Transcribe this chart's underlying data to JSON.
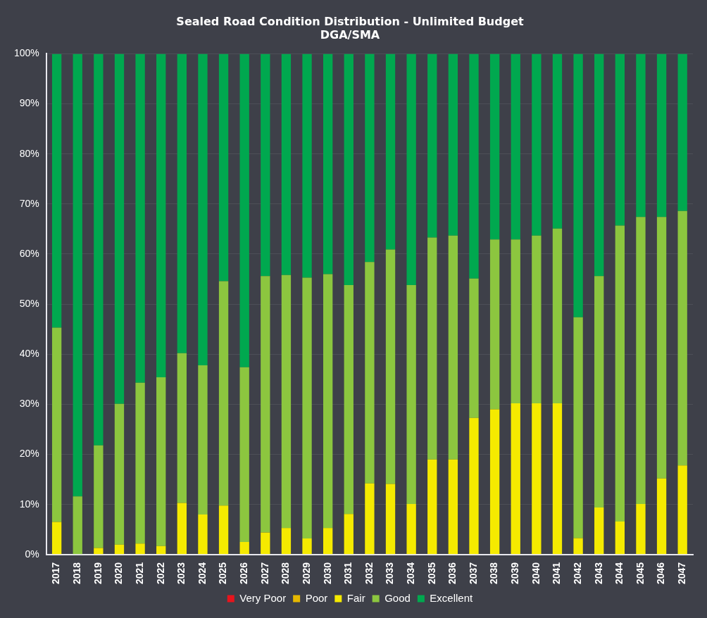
{
  "chart_data": {
    "type": "bar",
    "title": [
      "Sealed Road Condition Distribution - Unlimited Budget",
      "DGA/SMA"
    ],
    "stacked": true,
    "categories": [
      "2017",
      "2018",
      "2019",
      "2020",
      "2021",
      "2022",
      "2023",
      "2024",
      "2025",
      "2026",
      "2027",
      "2028",
      "2029",
      "2030",
      "2031",
      "2032",
      "2033",
      "2034",
      "2035",
      "2036",
      "2037",
      "2038",
      "2039",
      "2040",
      "2041",
      "2042",
      "2043",
      "2044",
      "2045",
      "2046",
      "2047"
    ],
    "series": [
      {
        "name": "Very Poor",
        "color": "#e8141c",
        "values": [
          0,
          0,
          0,
          0,
          0,
          0,
          0,
          0,
          0,
          0,
          0,
          0,
          0,
          0,
          0,
          0,
          0,
          0,
          0,
          0,
          0,
          0,
          0,
          0,
          0,
          0,
          0,
          0,
          0,
          0,
          0
        ]
      },
      {
        "name": "Poor",
        "color": "#e6b800",
        "values": [
          0,
          0,
          0,
          0,
          0,
          0,
          0,
          0,
          0,
          0,
          0,
          0,
          0,
          0,
          0,
          0,
          0,
          0,
          0,
          0,
          0,
          0,
          0,
          0,
          0,
          0,
          0,
          0,
          0,
          0,
          0
        ]
      },
      {
        "name": "Fair",
        "color": "#f5ea00",
        "values": [
          6.5,
          0,
          1.3,
          2,
          2.2,
          1.7,
          10.3,
          8,
          9.8,
          2.5,
          4.4,
          5.3,
          3.2,
          5.3,
          8.1,
          14.2,
          14.1,
          10.1,
          19,
          19,
          27.3,
          29,
          30.2,
          30.2,
          30.2,
          3.3,
          9.4,
          6.6,
          10.1,
          15.2,
          17.8
        ]
      },
      {
        "name": "Good",
        "color": "#8cc63f",
        "values": [
          38.8,
          11.6,
          20.5,
          28.1,
          32.1,
          33.7,
          29.9,
          29.8,
          44.8,
          34.9,
          51.2,
          50.5,
          52.1,
          50.7,
          45.7,
          44.2,
          46.8,
          43.7,
          44.3,
          44.7,
          27.8,
          33.9,
          32.7,
          33.5,
          34.9,
          44.1,
          46.2,
          59.1,
          57.3,
          52.2,
          50.8
        ]
      },
      {
        "name": "Excellent",
        "color": "#00a84f",
        "values": [
          54.7,
          88.4,
          78.2,
          69.9,
          65.7,
          64.6,
          59.8,
          62.2,
          45.4,
          62.6,
          44.4,
          44.2,
          44.7,
          44,
          46.2,
          41.6,
          39.1,
          46.2,
          36.7,
          36.3,
          44.9,
          37.1,
          37.1,
          36.3,
          34.9,
          52.6,
          44.4,
          34.3,
          32.6,
          32.6,
          31.4
        ]
      }
    ],
    "ylim": [
      0,
      100
    ],
    "yticks": [
      {
        "value": 0,
        "label": "0%"
      },
      {
        "value": 10,
        "label": "10%"
      },
      {
        "value": 20,
        "label": "20%"
      },
      {
        "value": 30,
        "label": "30%"
      },
      {
        "value": 40,
        "label": "40%"
      },
      {
        "value": 50,
        "label": "50%"
      },
      {
        "value": 60,
        "label": "60%"
      },
      {
        "value": 70,
        "label": "70%"
      },
      {
        "value": 80,
        "label": "80%"
      },
      {
        "value": 90,
        "label": "90%"
      },
      {
        "value": 100,
        "label": "100%"
      }
    ],
    "grid": "y",
    "legend": "bottom"
  }
}
